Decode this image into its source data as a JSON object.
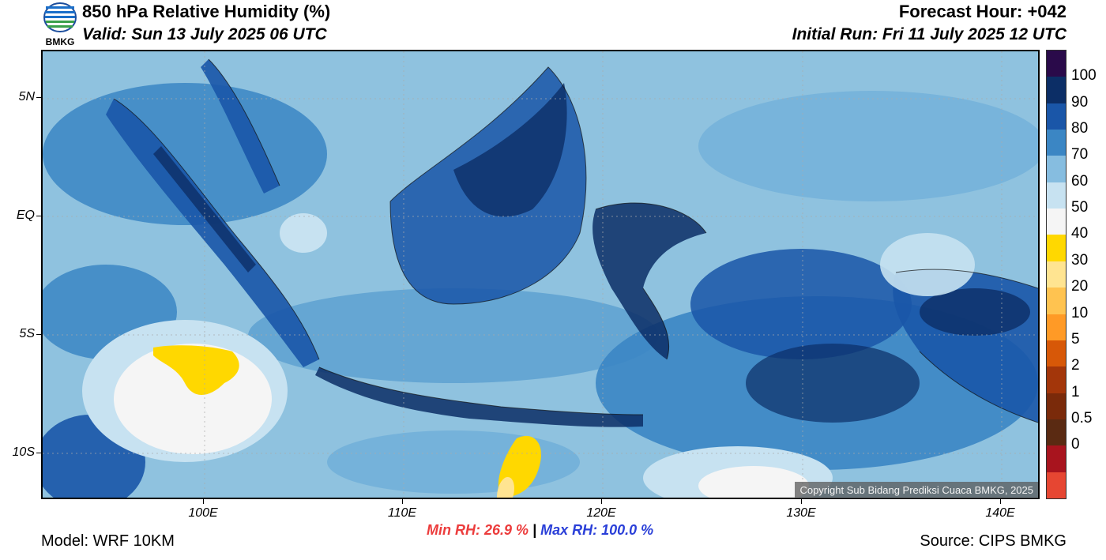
{
  "header": {
    "logo_text": "BMKG",
    "title": "850 hPa Relative Humidity (%)",
    "valid": "Valid: Sun 13 July 2025 06 UTC",
    "forecast_hour": "Forecast Hour: +042",
    "initial_run": "Initial Run: Fri 11 July 2025 12 UTC"
  },
  "map": {
    "lat_labels": [
      "5N",
      "EQ",
      "5S",
      "10S"
    ],
    "lon_labels": [
      "100E",
      "110E",
      "120E",
      "130E",
      "140E"
    ],
    "copyright": "Copyright Sub Bidang Prediksi Cuaca BMKG, 2025"
  },
  "colorbar": {
    "labels": [
      "100",
      "90",
      "80",
      "70",
      "60",
      "50",
      "40",
      "30",
      "20",
      "10",
      "5",
      "2",
      "1",
      "0.5",
      "0"
    ],
    "colors": [
      "#2a0a4a",
      "#0c2e66",
      "#1a56a8",
      "#3b86c4",
      "#86bde0",
      "#c7e2f1",
      "#f5f5f5",
      "#ffd800",
      "#ffe491",
      "#ffc350",
      "#ff9a26",
      "#d75808",
      "#a3360a",
      "#7a2a0a",
      "#5a2a12",
      "#a8141e",
      "#e64632"
    ]
  },
  "stats": {
    "min_label": "Min RH:  26.9 %",
    "separator": "|",
    "max_label": "Max RH: 100.0 %"
  },
  "footer": {
    "model": "Model: WRF 10KM",
    "source": "Source: CIPS BMKG"
  }
}
